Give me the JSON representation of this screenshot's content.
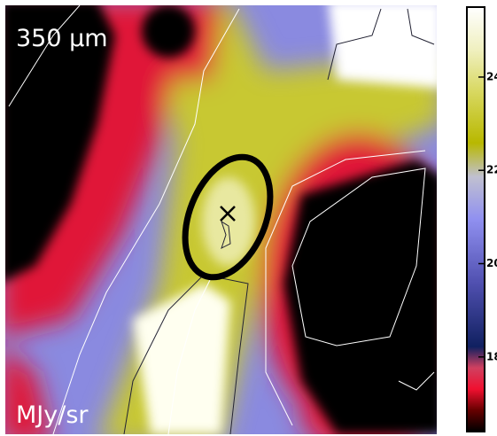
{
  "chart_data": {
    "type": "heatmap",
    "title": "350 μm",
    "unit_label": "MJy/sr",
    "colorbar": {
      "lim": [
        16.4,
        25.5
      ],
      "ticks": [
        18,
        20,
        22,
        24
      ]
    }
  }
}
